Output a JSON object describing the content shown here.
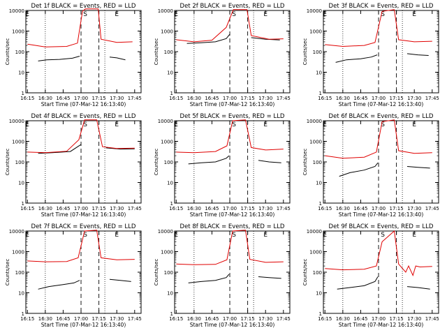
{
  "figure": {
    "start_time_label": "Start Time (07-Mar-12 16:13:40)",
    "ylabel": "Counts/sec",
    "x_ticks": [
      "16:15",
      "16:30",
      "16:45",
      "17:00",
      "17:15",
      "17:30",
      "17:45"
    ],
    "y_ticks": [
      "1",
      "10",
      "100",
      "1000",
      "10000"
    ],
    "colors": {
      "events": "#000000",
      "lld": "#e00000",
      "axis": "#000000"
    }
  },
  "chart_data": [
    {
      "type": "line",
      "title": "Det 1f BLACK = Events, RED = LLD",
      "markers": [
        "E",
        "S",
        "E"
      ],
      "xlabel": "Start Time (07-Mar-12 16:13:40)",
      "ylabel": "Counts/sec",
      "ylim": [
        1,
        10000
      ],
      "yscale": "log",
      "series": [
        {
          "name": "Events",
          "color": "#000000",
          "segments": [
            {
              "t": [
                16.4,
                16.52,
                16.7,
                16.88,
                16.98
              ],
              "v": [
                35,
                40,
                42,
                48,
                60
              ]
            },
            {
              "t": [
                17.4,
                17.5,
                17.62
              ],
              "v": [
                55,
                50,
                40
              ]
            }
          ]
        },
        {
          "name": "LLD",
          "color": "#e00000",
          "segments": [
            {
              "t": [
                16.25,
                16.5,
                16.8,
                16.95,
                17.02,
                17.06,
                17.24,
                17.28,
                17.5,
                17.72
              ],
              "v": [
                230,
                170,
                180,
                260,
                9000,
                12000,
                12000,
                400,
                280,
                300
              ]
            }
          ]
        }
      ]
    },
    {
      "type": "line",
      "title": "Det 2f BLACK = Events, RED = LLD",
      "markers": [
        "E",
        "S",
        "E"
      ],
      "xlabel": "Start Time (07-Mar-12 16:13:40)",
      "ylabel": "Counts/sec",
      "ylim": [
        1,
        10000
      ],
      "yscale": "log",
      "series": [
        {
          "name": "Events",
          "color": "#000000",
          "segments": [
            {
              "t": [
                16.4,
                16.6,
                16.8,
                16.95,
                17.0
              ],
              "v": [
                250,
                270,
                300,
                430,
                700
              ]
            },
            {
              "t": [
                17.3,
                17.5,
                17.7
              ],
              "v": [
                480,
                400,
                370
              ]
            }
          ]
        },
        {
          "name": "LLD",
          "color": "#e00000",
          "segments": [
            {
              "t": [
                16.25,
                16.5,
                16.75,
                16.95,
                17.05,
                17.24,
                17.3,
                17.55,
                17.75
              ],
              "v": [
                380,
                300,
                360,
                1500,
                11000,
                11000,
                600,
                400,
                420
              ]
            }
          ]
        }
      ]
    },
    {
      "type": "line",
      "title": "Det 3f BLACK = Events, RED = LLD",
      "markers": [
        "E",
        "S",
        "E"
      ],
      "xlabel": "Start Time (07-Mar-12 16:13:40)",
      "ylabel": "Counts/sec",
      "ylim": [
        1,
        10000
      ],
      "yscale": "log",
      "series": [
        {
          "name": "Events",
          "color": "#000000",
          "segments": [
            {
              "t": [
                16.4,
                16.55,
                16.75,
                16.9,
                16.98
              ],
              "v": [
                30,
                40,
                45,
                55,
                70
              ]
            },
            {
              "t": [
                17.4,
                17.55,
                17.7
              ],
              "v": [
                80,
                70,
                65
              ]
            }
          ]
        },
        {
          "name": "LLD",
          "color": "#e00000",
          "segments": [
            {
              "t": [
                16.25,
                16.5,
                16.8,
                16.95,
                17.05,
                17.22,
                17.28,
                17.5,
                17.75
              ],
              "v": [
                220,
                180,
                200,
                280,
                9000,
                11000,
                380,
                300,
                320
              ]
            }
          ]
        }
      ]
    },
    {
      "type": "line",
      "title": "Det 4f BLACK = Events, RED = LLD",
      "markers": [
        "E",
        "S",
        "E"
      ],
      "xlabel": "Start Time (07-Mar-12 16:13:40)",
      "ylabel": "Counts/sec",
      "ylim": [
        1,
        10000
      ],
      "yscale": "log",
      "series": [
        {
          "name": "Events",
          "color": "#000000",
          "segments": [
            {
              "t": [
                16.4,
                16.6,
                16.85,
                17.0
              ],
              "v": [
                260,
                280,
                320,
                700
              ]
            },
            {
              "t": [
                17.35,
                17.55,
                17.75
              ],
              "v": [
                480,
                420,
                430
              ]
            }
          ]
        },
        {
          "name": "LLD",
          "color": "#e00000",
          "segments": [
            {
              "t": [
                16.25,
                16.5,
                16.8,
                16.97,
                17.05,
                17.22,
                17.3,
                17.5,
                17.75
              ],
              "v": [
                300,
                280,
                330,
                1200,
                11000,
                11000,
                550,
                450,
                470
              ]
            }
          ]
        }
      ]
    },
    {
      "type": "line",
      "title": "Det 5f BLACK = Events, RED = LLD",
      "markers": [
        "E",
        "S",
        "E"
      ],
      "xlabel": "Start Time (07-Mar-12 16:13:40)",
      "ylabel": "Counts/sec",
      "ylim": [
        1,
        10000
      ],
      "yscale": "log",
      "series": [
        {
          "name": "Events",
          "color": "#000000",
          "segments": [
            {
              "t": [
                16.42,
                16.6,
                16.8,
                16.95,
                16.99
              ],
              "v": [
                80,
                90,
                100,
                150,
                200
              ]
            },
            {
              "t": [
                17.4,
                17.55,
                17.72
              ],
              "v": [
                120,
                100,
                90
              ]
            }
          ]
        },
        {
          "name": "LLD",
          "color": "#e00000",
          "segments": [
            {
              "t": [
                16.25,
                16.5,
                16.8,
                16.96,
                17.04,
                17.22,
                17.3,
                17.5,
                17.75
              ],
              "v": [
                300,
                280,
                320,
                600,
                10000,
                11000,
                500,
                380,
                420
              ]
            }
          ]
        }
      ]
    },
    {
      "type": "line",
      "title": "Det 6f BLACK = Events, RED = LLD",
      "markers": [
        "E",
        "S",
        "E"
      ],
      "xlabel": "Start Time (07-Mar-12 16:13:40)",
      "ylabel": "Counts/sec",
      "ylim": [
        1,
        10000
      ],
      "yscale": "log",
      "series": [
        {
          "name": "Events",
          "color": "#000000",
          "segments": [
            {
              "t": [
                16.45,
                16.6,
                16.8,
                16.95,
                16.99
              ],
              "v": [
                20,
                30,
                40,
                60,
                90
              ]
            },
            {
              "t": [
                17.4,
                17.55,
                17.72
              ],
              "v": [
                60,
                55,
                50
              ]
            }
          ]
        },
        {
          "name": "LLD",
          "color": "#e00000",
          "segments": [
            {
              "t": [
                16.25,
                16.5,
                16.8,
                16.97,
                17.05,
                17.22,
                17.28,
                17.5,
                17.75
              ],
              "v": [
                200,
                150,
                170,
                300,
                9000,
                11000,
                350,
                260,
                280
              ]
            }
          ]
        }
      ]
    },
    {
      "type": "line",
      "title": "Det 7f BLACK = Events, RED = LLD",
      "markers": [
        "E",
        "S",
        "E"
      ],
      "xlabel": "Start Time (07-Mar-12 16:13:40)",
      "ylabel": "Counts/sec",
      "ylim": [
        1,
        10000
      ],
      "yscale": "log",
      "series": [
        {
          "name": "Events",
          "color": "#000000",
          "segments": [
            {
              "t": [
                16.4,
                16.55,
                16.75,
                16.9,
                16.98
              ],
              "v": [
                15,
                20,
                25,
                30,
                40
              ]
            },
            {
              "t": [
                17.4,
                17.55,
                17.7
              ],
              "v": [
                45,
                40,
                35
              ]
            }
          ]
        },
        {
          "name": "LLD",
          "color": "#e00000",
          "segments": [
            {
              "t": [
                16.25,
                16.5,
                16.8,
                16.96,
                17.05,
                17.22,
                17.28,
                17.5,
                17.75
              ],
              "v": [
                350,
                320,
                330,
                500,
                10000,
                11000,
                500,
                400,
                420
              ]
            }
          ]
        }
      ]
    },
    {
      "type": "line",
      "title": "Det 8f BLACK = Events, RED = LLD",
      "markers": [
        "E",
        "S",
        "E"
      ],
      "xlabel": "Start Time (07-Mar-12 16:13:40)",
      "ylabel": "Counts/sec",
      "ylim": [
        1,
        10000
      ],
      "yscale": "log",
      "series": [
        {
          "name": "Events",
          "color": "#000000",
          "segments": [
            {
              "t": [
                16.42,
                16.6,
                16.8,
                16.95,
                16.99
              ],
              "v": [
                30,
                35,
                40,
                55,
                80
              ]
            },
            {
              "t": [
                17.4,
                17.55,
                17.72
              ],
              "v": [
                60,
                55,
                50
              ]
            }
          ]
        },
        {
          "name": "LLD",
          "color": "#e00000",
          "segments": [
            {
              "t": [
                16.25,
                16.5,
                16.8,
                16.96,
                17.04,
                17.22,
                17.28,
                17.5,
                17.75
              ],
              "v": [
                250,
                230,
                240,
                400,
                10000,
                11000,
                420,
                300,
                320
              ]
            }
          ]
        }
      ]
    },
    {
      "type": "line",
      "title": "Det 9f BLACK = Events, RED = LLD",
      "markers": [
        "E",
        "S",
        "E"
      ],
      "xlabel": "Start Time (07-Mar-12 16:13:40)",
      "ylabel": "Counts/sec",
      "ylim": [
        1,
        10000
      ],
      "yscale": "log",
      "series": [
        {
          "name": "Events",
          "color": "#000000",
          "segments": [
            {
              "t": [
                16.42,
                16.6,
                16.8,
                16.95,
                16.99
              ],
              "v": [
                15,
                18,
                22,
                35,
                60
              ]
            },
            {
              "t": [
                17.4,
                17.55,
                17.72
              ],
              "v": [
                20,
                18,
                15
              ]
            }
          ]
        },
        {
          "name": "LLD",
          "color": "#e00000",
          "segments": [
            {
              "t": [
                16.25,
                16.5,
                16.8,
                16.97,
                17.05,
                17.22,
                17.28,
                17.38,
                17.42,
                17.48,
                17.52,
                17.58,
                17.75
              ],
              "v": [
                150,
                130,
                140,
                200,
                3000,
                10000,
                250,
                100,
                200,
                70,
                200,
                180,
                190
              ]
            }
          ]
        }
      ]
    }
  ]
}
